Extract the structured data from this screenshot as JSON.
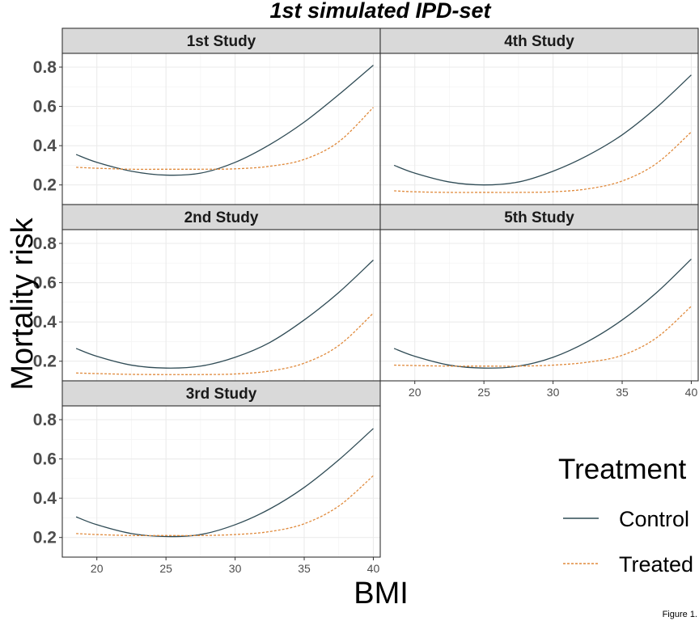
{
  "chart_data": {
    "type": "line",
    "title": "1st simulated IPD-set",
    "xlabel": "BMI",
    "ylabel": "Mortality risk",
    "caption": "Figure 1.",
    "xlim": [
      17.5,
      40.5
    ],
    "ylim": [
      0.1,
      0.87
    ],
    "x_ticks": [
      20,
      25,
      30,
      35,
      40
    ],
    "y_ticks": [
      0.2,
      0.4,
      0.6,
      0.8
    ],
    "x_tick_labels": [
      "20",
      "25",
      "30",
      "35",
      "40"
    ],
    "y_tick_labels": [
      "0.2",
      "0.4",
      "0.6",
      "0.8"
    ],
    "grid": true,
    "legend": {
      "title": "Treatment",
      "position": "right",
      "entries": [
        {
          "label": "Control",
          "color": "#2f4b55",
          "dash": "solid"
        },
        {
          "label": "Treated",
          "color": "#e08a3c",
          "dash": "dotted"
        }
      ]
    },
    "x": [
      18.5,
      20,
      22.5,
      25,
      27.5,
      30,
      32.5,
      35,
      37.5,
      40
    ],
    "panels": [
      {
        "name": "1st Study",
        "series": [
          {
            "name": "Control",
            "values": [
              0.355,
              0.315,
              0.27,
              0.25,
              0.26,
              0.315,
              0.405,
              0.52,
              0.66,
              0.81
            ]
          },
          {
            "name": "Treated",
            "values": [
              0.29,
              0.285,
              0.28,
              0.28,
              0.28,
              0.282,
              0.295,
              0.33,
              0.42,
              0.595
            ]
          }
        ]
      },
      {
        "name": "4th Study",
        "series": [
          {
            "name": "Control",
            "values": [
              0.3,
              0.26,
              0.215,
              0.2,
              0.215,
              0.27,
              0.35,
              0.455,
              0.595,
              0.76
            ]
          },
          {
            "name": "Treated",
            "values": [
              0.17,
              0.165,
              0.162,
              0.162,
              0.162,
              0.165,
              0.18,
              0.22,
              0.31,
              0.47
            ]
          }
        ]
      },
      {
        "name": "2nd Study",
        "series": [
          {
            "name": "Control",
            "values": [
              0.265,
              0.225,
              0.18,
              0.165,
              0.175,
              0.22,
              0.295,
              0.41,
              0.55,
              0.715
            ]
          },
          {
            "name": "Treated",
            "values": [
              0.14,
              0.137,
              0.133,
              0.132,
              0.132,
              0.135,
              0.15,
              0.19,
              0.28,
              0.445
            ]
          }
        ]
      },
      {
        "name": "5th Study",
        "series": [
          {
            "name": "Control",
            "values": [
              0.265,
              0.225,
              0.18,
              0.165,
              0.175,
              0.22,
              0.3,
              0.41,
              0.55,
              0.72
            ]
          },
          {
            "name": "Treated",
            "values": [
              0.18,
              0.178,
              0.175,
              0.175,
              0.175,
              0.18,
              0.195,
              0.23,
              0.32,
              0.48
            ]
          }
        ]
      },
      {
        "name": "3rd Study",
        "series": [
          {
            "name": "Control",
            "values": [
              0.305,
              0.265,
              0.22,
              0.205,
              0.215,
              0.265,
              0.345,
              0.455,
              0.595,
              0.755
            ]
          },
          {
            "name": "Treated",
            "values": [
              0.22,
              0.215,
              0.21,
              0.21,
              0.21,
              0.215,
              0.23,
              0.27,
              0.36,
              0.515
            ]
          }
        ]
      }
    ]
  }
}
